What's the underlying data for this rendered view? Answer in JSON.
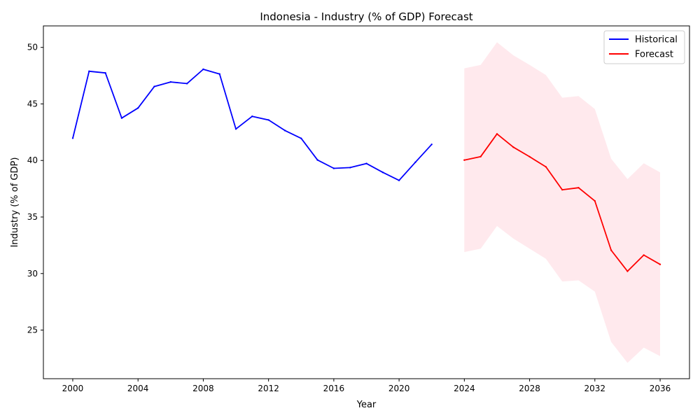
{
  "chart_data": {
    "type": "line",
    "title": "Indonesia - Industry (% of GDP) Forecast",
    "xlabel": "Year",
    "ylabel": "Industry (% of GDP)",
    "xlim": [
      1998.2,
      2037.8
    ],
    "ylim": [
      20.7,
      51.9
    ],
    "xticks": [
      2000,
      2004,
      2008,
      2012,
      2016,
      2020,
      2024,
      2028,
      2032,
      2036
    ],
    "yticks": [
      25,
      30,
      35,
      40,
      45,
      50
    ],
    "grid": false,
    "legend_position": "top-right",
    "series": [
      {
        "name": "Historical",
        "color": "#0000ff",
        "x": [
          2000,
          2001,
          2002,
          2003,
          2004,
          2005,
          2006,
          2007,
          2008,
          2009,
          2010,
          2011,
          2012,
          2013,
          2014,
          2015,
          2016,
          2017,
          2018,
          2019,
          2020,
          2021,
          2022
        ],
        "y": [
          41.97,
          47.89,
          47.74,
          43.75,
          44.64,
          46.54,
          46.94,
          46.8,
          48.06,
          47.65,
          42.78,
          43.9,
          43.58,
          42.65,
          41.95,
          40.04,
          39.3,
          39.37,
          39.73,
          38.95,
          38.24,
          39.84,
          41.42
        ]
      },
      {
        "name": "Forecast",
        "color": "#ff0000",
        "x": [
          2024,
          2025,
          2026,
          2027,
          2028,
          2029,
          2030,
          2031,
          2032,
          2033,
          2034,
          2035,
          2036
        ],
        "y": [
          40.03,
          40.34,
          42.35,
          41.18,
          40.33,
          39.43,
          37.41,
          37.59,
          36.42,
          32.06,
          30.2,
          31.63,
          30.81
        ],
        "lower": [
          31.9,
          32.2,
          34.2,
          33.1,
          32.2,
          31.3,
          29.3,
          29.4,
          28.4,
          23.95,
          22.1,
          23.45,
          22.7
        ],
        "upper": [
          48.15,
          48.45,
          50.45,
          49.3,
          48.45,
          47.55,
          45.55,
          45.7,
          44.55,
          40.15,
          38.35,
          39.75,
          38.95
        ]
      }
    ]
  }
}
